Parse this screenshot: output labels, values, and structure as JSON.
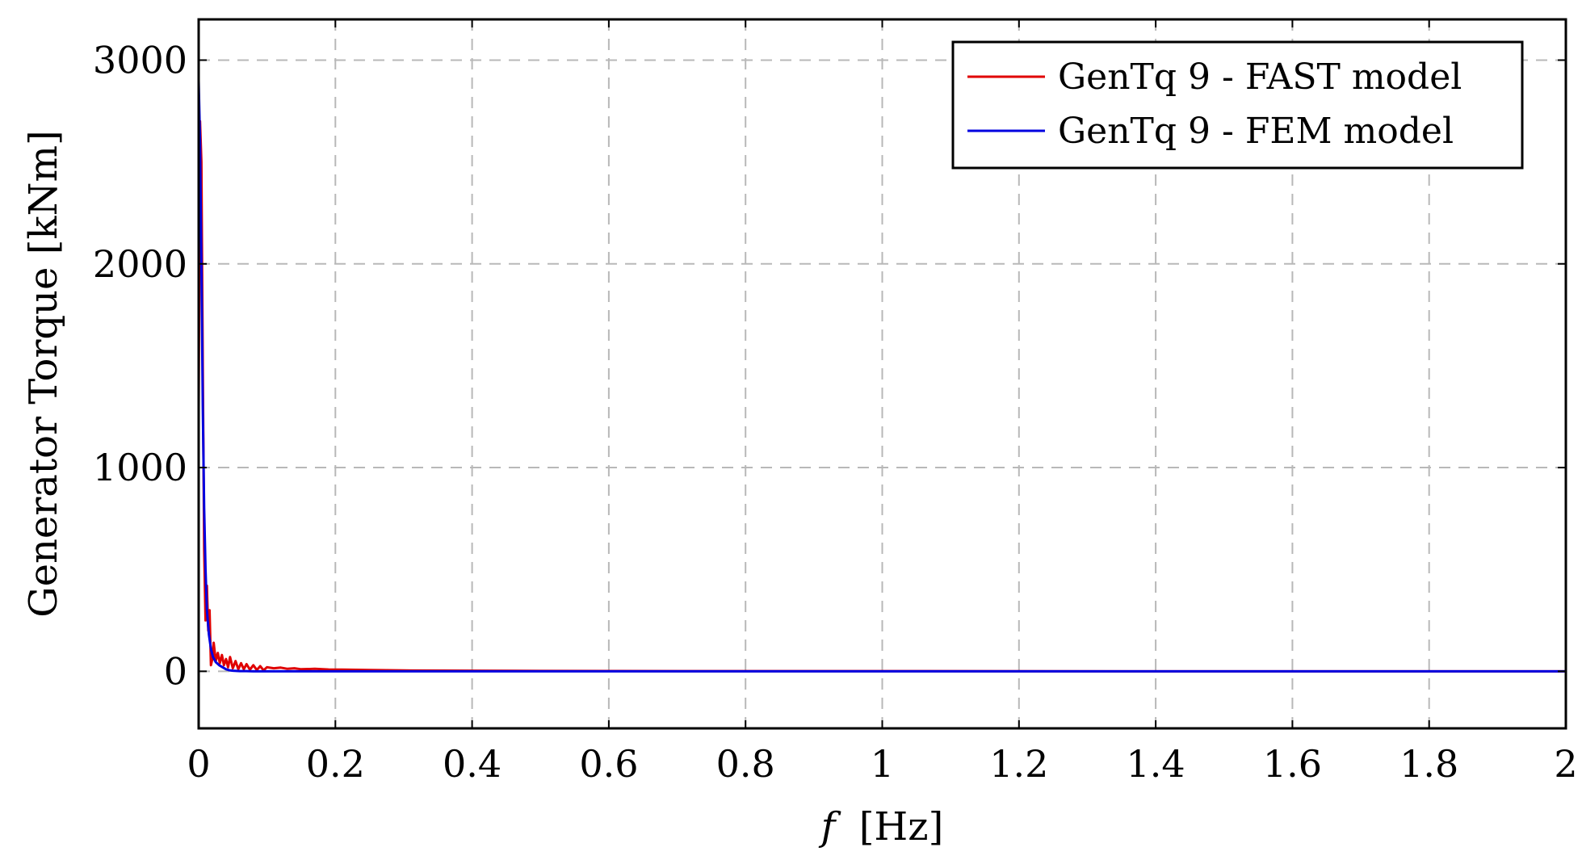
{
  "chart_data": {
    "type": "line",
    "xlabel_symbol": "f",
    "xlabel_unit": "[Hz]",
    "ylabel": "Generator Torque [kNm]",
    "xlim": [
      0,
      2
    ],
    "ylim": [
      -280,
      3200
    ],
    "x_ticks": [
      0,
      0.2,
      0.4,
      0.6,
      0.8,
      1,
      1.2,
      1.4,
      1.6,
      1.8,
      2
    ],
    "x_tick_labels": [
      "0",
      "0.2",
      "0.4",
      "0.6",
      "0.8",
      "1",
      "1.2",
      "1.4",
      "1.6",
      "1.8",
      "2"
    ],
    "y_ticks": [
      0,
      1000,
      2000,
      3000
    ],
    "y_tick_labels": [
      "0",
      "1000",
      "2000",
      "3000"
    ],
    "grid": true,
    "legend_position": "top-right",
    "series": [
      {
        "name": "GenTq 9 - FAST model",
        "color": "#e00000",
        "x": [
          0,
          0.002,
          0.004,
          0.006,
          0.008,
          0.01,
          0.012,
          0.014,
          0.016,
          0.018,
          0.02,
          0.022,
          0.025,
          0.028,
          0.031,
          0.034,
          0.037,
          0.04,
          0.043,
          0.046,
          0.05,
          0.054,
          0.058,
          0.062,
          0.066,
          0.07,
          0.075,
          0.08,
          0.085,
          0.09,
          0.095,
          0.1,
          0.11,
          0.12,
          0.13,
          0.14,
          0.15,
          0.17,
          0.19,
          0.21,
          0.25,
          0.3,
          0.4,
          0.5,
          0.7,
          1.0,
          1.5,
          2.0
        ],
        "y": [
          1300,
          2700,
          2500,
          1500,
          600,
          250,
          420,
          200,
          300,
          30,
          60,
          140,
          50,
          90,
          40,
          80,
          30,
          60,
          20,
          70,
          15,
          50,
          10,
          40,
          10,
          35,
          8,
          30,
          6,
          25,
          5,
          20,
          15,
          18,
          12,
          15,
          10,
          12,
          9,
          8,
          6,
          4,
          3,
          2,
          1,
          1,
          0,
          0
        ]
      },
      {
        "name": "GenTq 9 - FEM model",
        "color": "#0000e0",
        "x": [
          0,
          0.002,
          0.004,
          0.006,
          0.008,
          0.01,
          0.012,
          0.015,
          0.018,
          0.021,
          0.025,
          0.03,
          0.035,
          0.04,
          0.045,
          0.05,
          0.055,
          0.06,
          0.07,
          0.08,
          0.1,
          0.15,
          0.2,
          0.3,
          0.5,
          1.0,
          1.5,
          2.0
        ],
        "y": [
          2900,
          2600,
          2000,
          1300,
          800,
          500,
          300,
          180,
          110,
          70,
          45,
          30,
          20,
          10,
          5,
          3,
          2,
          1,
          1,
          0,
          0,
          0,
          0,
          0,
          0,
          0,
          0,
          0
        ]
      }
    ]
  }
}
